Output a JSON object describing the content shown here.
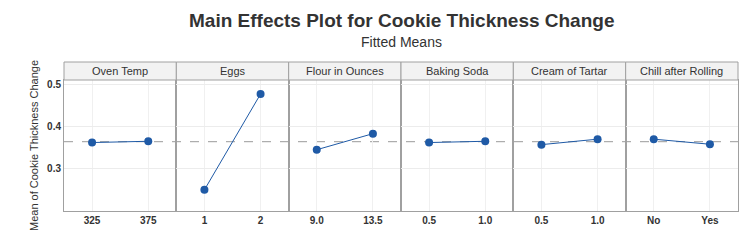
{
  "chart_data": {
    "type": "line",
    "title": "Main Effects Plot for Cookie Thickness Change",
    "subtitle": "Fitted Means",
    "y_label": "Mean of Cookie Thickness Change",
    "ylim": [
      0.2,
      0.51
    ],
    "yticks": [
      0.3,
      0.4,
      0.5
    ],
    "grid": true,
    "color": "#1f5aa6",
    "marker": "circle",
    "mean": 0.364,
    "panels": [
      {
        "title": "Oven Temp",
        "categories": [
          "325",
          "375"
        ],
        "values": [
          0.362,
          0.365
        ]
      },
      {
        "title": "Eggs",
        "categories": [
          "1",
          "2"
        ],
        "values": [
          0.25,
          0.477
        ]
      },
      {
        "title": "Flour in Ounces",
        "categories": [
          "9.0",
          "13.5"
        ],
        "values": [
          0.345,
          0.383
        ]
      },
      {
        "title": "Baking Soda",
        "categories": [
          "0.5",
          "1.0"
        ],
        "values": [
          0.362,
          0.365
        ]
      },
      {
        "title": "Cream of Tartar",
        "categories": [
          "0.5",
          "1.0"
        ],
        "values": [
          0.357,
          0.37
        ]
      },
      {
        "title": "Chill after Rolling",
        "categories": [
          "No",
          "Yes"
        ],
        "values": [
          0.37,
          0.358
        ]
      }
    ]
  }
}
